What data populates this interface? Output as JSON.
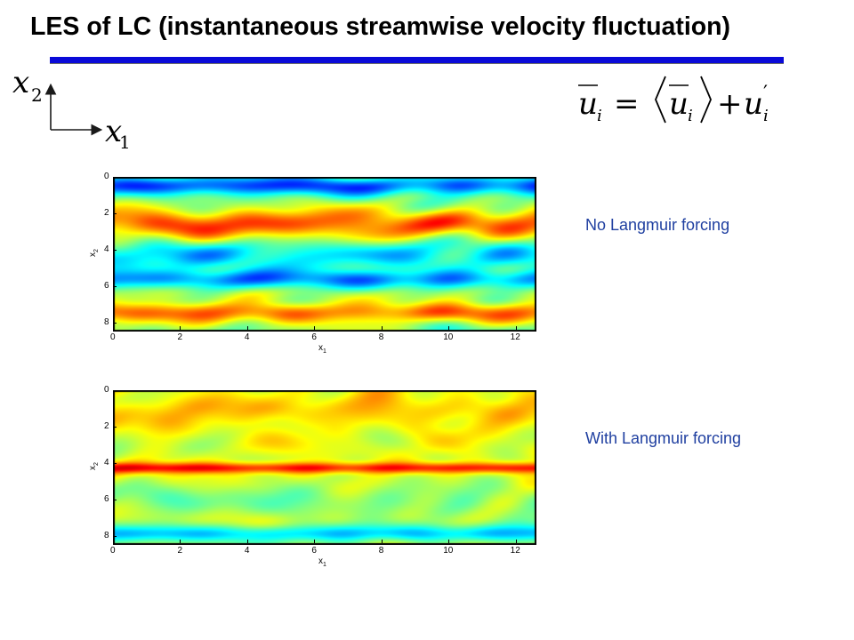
{
  "slide": {
    "title": "LES of LC (instantaneous streamwise velocity fluctuation)",
    "colors": {
      "rule": "#0a0ad8",
      "label": "#1f3fa0"
    }
  },
  "coordinate_axes": {
    "vertical": {
      "letter": "x",
      "subscript": "2"
    },
    "horizontal": {
      "letter": "x",
      "subscript": "1"
    }
  },
  "equation": {
    "lhs_base": "u",
    "lhs_sub": "i",
    "equals": "=",
    "mean_base": "u",
    "mean_sub": "i",
    "plus": "+",
    "fluct_base": "u",
    "fluct_prime": "′",
    "fluct_sub": "i"
  },
  "panels": [
    {
      "label": "No Langmuir forcing",
      "x_ticks": [
        "0",
        "2",
        "4",
        "6",
        "8",
        "10",
        "12"
      ],
      "y_ticks": [
        "0",
        "2",
        "4",
        "6",
        "8"
      ],
      "xlabel": "x",
      "xlabel_sub": "1",
      "ylabel": "x",
      "ylabel_sub": "2",
      "xlim": [
        0,
        12.566
      ],
      "ylim": [
        0,
        8.4
      ],
      "field": "no_forcing"
    },
    {
      "label": "With Langmuir forcing",
      "x_ticks": [
        "0",
        "2",
        "4",
        "6",
        "8",
        "10",
        "12"
      ],
      "y_ticks": [
        "0",
        "2",
        "4",
        "6",
        "8"
      ],
      "xlabel": "x",
      "xlabel_sub": "1",
      "ylabel": "x",
      "ylabel_sub": "2",
      "xlim": [
        0,
        12.566
      ],
      "ylim": [
        0,
        8.4
      ],
      "field": "langmuir"
    }
  ]
}
